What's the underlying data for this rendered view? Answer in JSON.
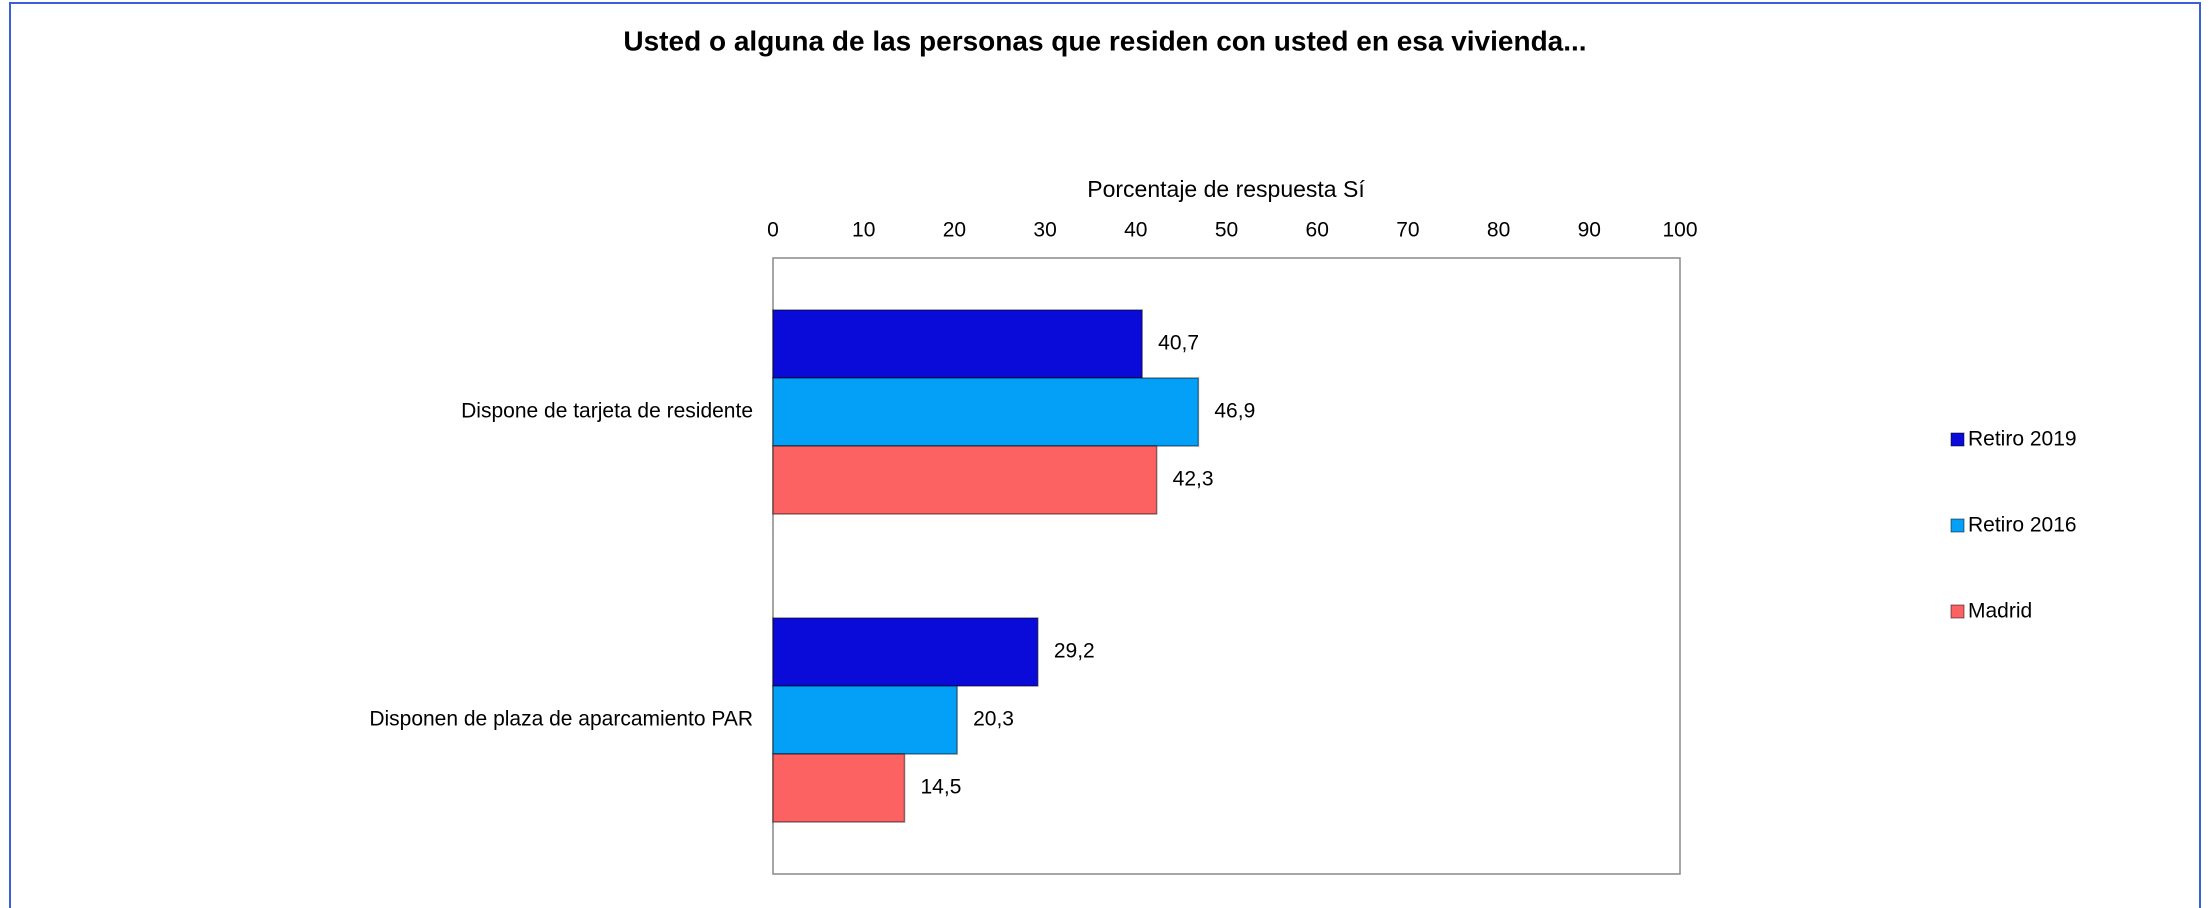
{
  "chart_data": {
    "type": "hbar",
    "title": "Usted o alguna de las personas que residen con usted en esa vivienda...",
    "xlabel": "Porcentaje de respuesta Sí",
    "categories": [
      "Dispone de tarjeta de residente",
      "Disponen de plaza de aparcamiento PAR"
    ],
    "series": [
      {
        "name": "Retiro 2019",
        "color": "#0b0bd9",
        "values": [
          40.7,
          29.2
        ],
        "value_labels": [
          "40,7",
          "29,2"
        ]
      },
      {
        "name": "Retiro 2016",
        "color": "#04a0f8",
        "values": [
          46.9,
          20.3
        ],
        "value_labels": [
          "46,9",
          "20,3"
        ]
      },
      {
        "name": "Madrid",
        "color": "#fc6262",
        "values": [
          42.3,
          14.5
        ],
        "value_labels": [
          "42,3",
          "14,5"
        ]
      }
    ],
    "xlim": [
      0,
      100
    ],
    "xticks": [
      0,
      10,
      20,
      30,
      40,
      50,
      60,
      70,
      80,
      90,
      100
    ],
    "legend": "right"
  }
}
